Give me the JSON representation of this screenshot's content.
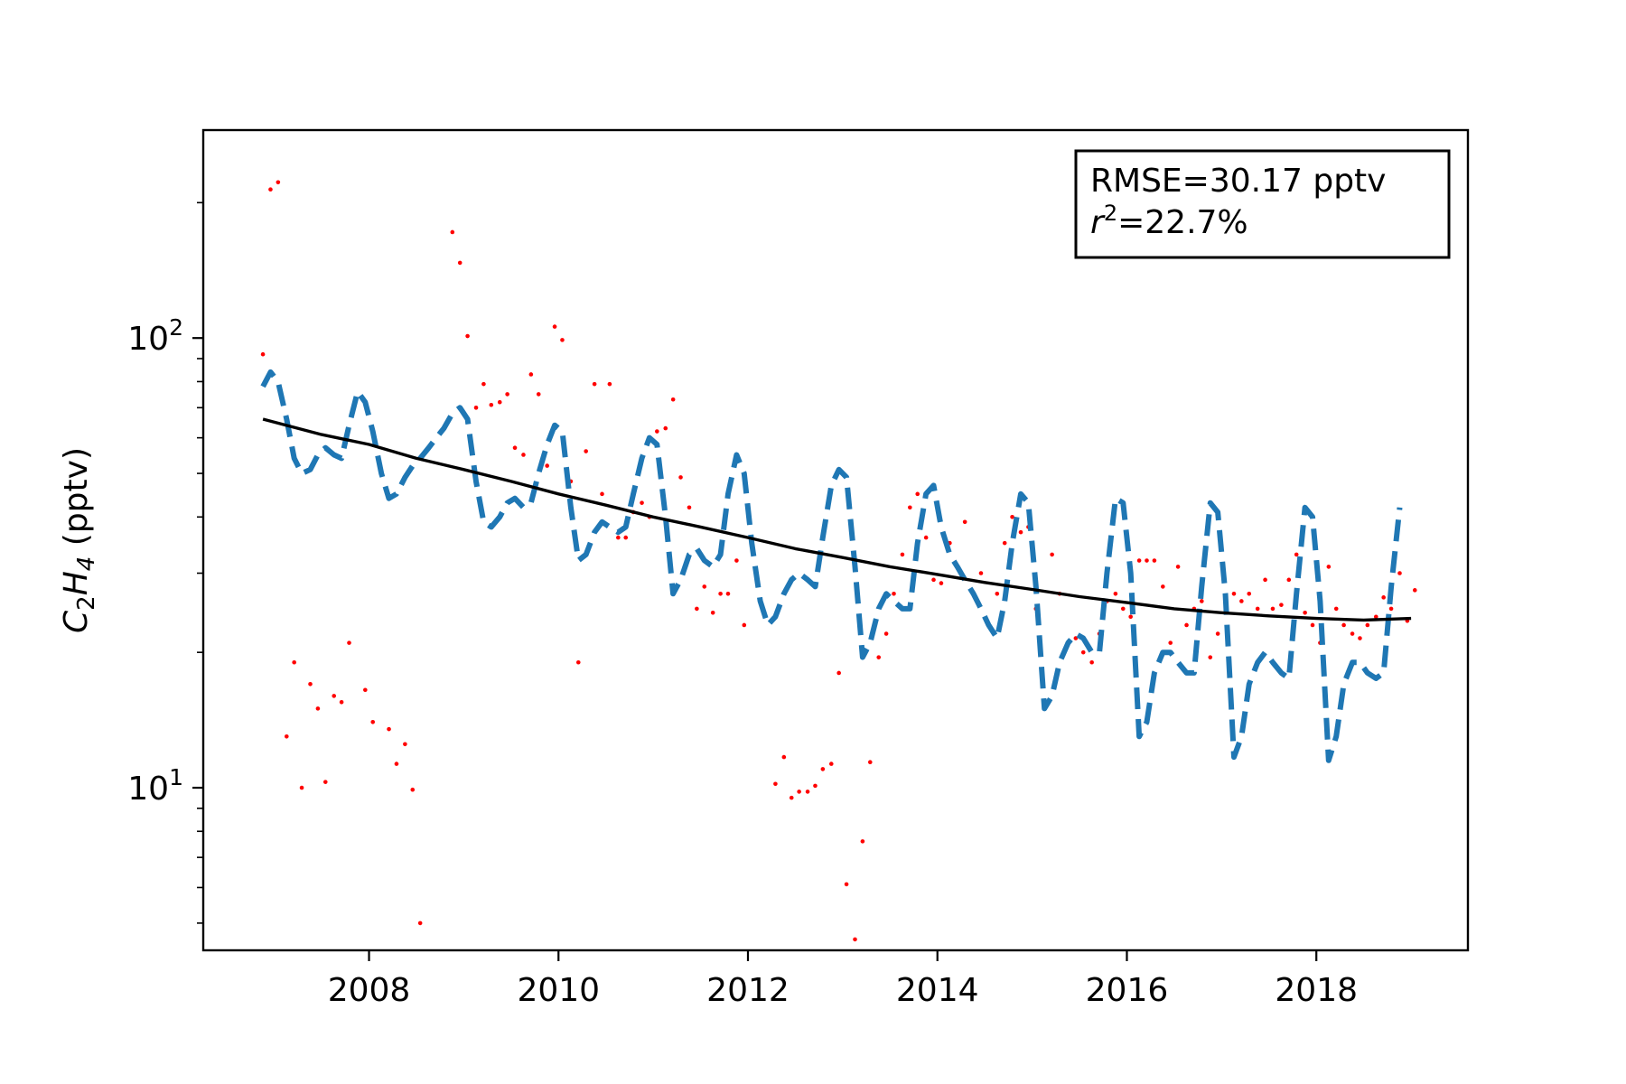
{
  "chart_data": {
    "type": "scatter",
    "title": "",
    "xlabel": "",
    "ylabel": {
      "species_main_1": "C",
      "species_sub_1": "2",
      "species_main_2": "H",
      "species_sub_2": "4",
      "unit": " (pptv)"
    },
    "annotation": {
      "line1": "RMSE=30.17 pptv",
      "line2_var": "r",
      "line2_sup": "2",
      "line2_rest": "=22.7%"
    },
    "x_ticks": [
      2008,
      2010,
      2012,
      2014,
      2016,
      2018
    ],
    "y_ticks": [
      {
        "value": 10,
        "base": "10",
        "exp": "1"
      },
      {
        "value": 100,
        "base": "10",
        "exp": "2"
      }
    ],
    "xlim": [
      2006.25,
      2019.6
    ],
    "ylim": [
      4.35,
      290
    ],
    "y_scale": "log",
    "grid": false,
    "colors": {
      "observed": "#ff0000",
      "seasonal_fit": "#1f77b4",
      "trend": "#000000"
    },
    "series": [
      {
        "style": "red-dots",
        "points": [
          [
            2006.88,
            92
          ],
          [
            2006.96,
            214
          ],
          [
            2007.04,
            222
          ],
          [
            2007.13,
            13
          ],
          [
            2007.21,
            19
          ],
          [
            2007.29,
            10
          ],
          [
            2007.38,
            17
          ],
          [
            2007.46,
            15
          ],
          [
            2007.54,
            10.3
          ],
          [
            2007.63,
            16
          ],
          [
            2007.71,
            15.5
          ],
          [
            2007.79,
            21
          ],
          [
            2007.96,
            16.5
          ],
          [
            2008.04,
            14
          ],
          [
            2008.21,
            13.5
          ],
          [
            2008.29,
            11.3
          ],
          [
            2008.38,
            12.5
          ],
          [
            2008.46,
            9.9
          ],
          [
            2008.54,
            5.0
          ],
          [
            2008.88,
            172
          ],
          [
            2008.96,
            147
          ],
          [
            2009.04,
            101
          ],
          [
            2009.13,
            70
          ],
          [
            2009.21,
            79
          ],
          [
            2009.29,
            71
          ],
          [
            2009.38,
            72
          ],
          [
            2009.46,
            75
          ],
          [
            2009.54,
            57
          ],
          [
            2009.63,
            55
          ],
          [
            2009.71,
            83
          ],
          [
            2009.79,
            75
          ],
          [
            2009.88,
            52
          ],
          [
            2009.96,
            106
          ],
          [
            2010.04,
            99
          ],
          [
            2010.13,
            48
          ],
          [
            2010.21,
            19
          ],
          [
            2010.29,
            56
          ],
          [
            2010.38,
            79
          ],
          [
            2010.46,
            45
          ],
          [
            2010.54,
            79
          ],
          [
            2010.63,
            36
          ],
          [
            2010.71,
            36
          ],
          [
            2010.79,
            41
          ],
          [
            2010.88,
            43
          ],
          [
            2010.96,
            40
          ],
          [
            2011.04,
            62
          ],
          [
            2011.13,
            63
          ],
          [
            2011.21,
            73
          ],
          [
            2011.29,
            49
          ],
          [
            2011.38,
            42
          ],
          [
            2011.46,
            25
          ],
          [
            2011.54,
            28
          ],
          [
            2011.63,
            24.5
          ],
          [
            2011.71,
            27
          ],
          [
            2011.79,
            27
          ],
          [
            2011.88,
            32
          ],
          [
            2011.96,
            23
          ],
          [
            2012.29,
            10.2
          ],
          [
            2012.38,
            11.7
          ],
          [
            2012.46,
            9.5
          ],
          [
            2012.54,
            9.8
          ],
          [
            2012.63,
            9.8
          ],
          [
            2012.71,
            10.1
          ],
          [
            2012.79,
            11
          ],
          [
            2012.88,
            11.3
          ],
          [
            2012.96,
            18
          ],
          [
            2013.04,
            6.1
          ],
          [
            2013.13,
            4.6
          ],
          [
            2013.21,
            7.6
          ],
          [
            2013.29,
            11.4
          ],
          [
            2013.38,
            19.5
          ],
          [
            2013.46,
            22
          ],
          [
            2013.54,
            27
          ],
          [
            2013.63,
            33
          ],
          [
            2013.71,
            42
          ],
          [
            2013.79,
            45
          ],
          [
            2013.88,
            36
          ],
          [
            2013.96,
            29
          ],
          [
            2014.04,
            28.5
          ],
          [
            2014.13,
            35
          ],
          [
            2014.29,
            39
          ],
          [
            2014.46,
            30
          ],
          [
            2014.63,
            27
          ],
          [
            2014.71,
            35
          ],
          [
            2014.79,
            40
          ],
          [
            2014.88,
            37
          ],
          [
            2014.96,
            38
          ],
          [
            2015.04,
            25
          ],
          [
            2015.21,
            33
          ],
          [
            2015.29,
            27
          ],
          [
            2015.46,
            21.5
          ],
          [
            2015.54,
            20
          ],
          [
            2015.63,
            19
          ],
          [
            2015.71,
            22
          ],
          [
            2015.79,
            26
          ],
          [
            2015.88,
            27
          ],
          [
            2015.96,
            25
          ],
          [
            2016.04,
            24
          ],
          [
            2016.13,
            32
          ],
          [
            2016.21,
            32
          ],
          [
            2016.29,
            32
          ],
          [
            2016.38,
            28
          ],
          [
            2016.46,
            21
          ],
          [
            2016.54,
            31
          ],
          [
            2016.63,
            23
          ],
          [
            2016.71,
            25
          ],
          [
            2016.79,
            26
          ],
          [
            2016.88,
            19.5
          ],
          [
            2016.96,
            22
          ],
          [
            2017.04,
            26
          ],
          [
            2017.13,
            27
          ],
          [
            2017.21,
            26
          ],
          [
            2017.29,
            27
          ],
          [
            2017.38,
            25
          ],
          [
            2017.46,
            29
          ],
          [
            2017.54,
            25
          ],
          [
            2017.63,
            25.5
          ],
          [
            2017.71,
            29
          ],
          [
            2017.79,
            33
          ],
          [
            2017.88,
            24.5
          ],
          [
            2017.96,
            23
          ],
          [
            2018.04,
            21
          ],
          [
            2018.13,
            31
          ],
          [
            2018.21,
            25
          ],
          [
            2018.29,
            23
          ],
          [
            2018.38,
            22
          ],
          [
            2018.46,
            21.5
          ],
          [
            2018.54,
            23
          ],
          [
            2018.63,
            24
          ],
          [
            2018.71,
            26.5
          ],
          [
            2018.79,
            25
          ],
          [
            2018.88,
            30
          ],
          [
            2018.96,
            23.5
          ],
          [
            2019.04,
            27.5
          ]
        ]
      },
      {
        "style": "blue-dashed",
        "points": [
          [
            2006.88,
            78
          ],
          [
            2006.96,
            84
          ],
          [
            2007.04,
            80
          ],
          [
            2007.13,
            66
          ],
          [
            2007.21,
            54
          ],
          [
            2007.29,
            50
          ],
          [
            2007.38,
            51
          ],
          [
            2007.46,
            55
          ],
          [
            2007.54,
            57
          ],
          [
            2007.63,
            55
          ],
          [
            2007.71,
            54
          ],
          [
            2007.79,
            64
          ],
          [
            2007.88,
            76
          ],
          [
            2007.96,
            72
          ],
          [
            2008.04,
            62
          ],
          [
            2008.13,
            50
          ],
          [
            2008.21,
            44
          ],
          [
            2008.29,
            45
          ],
          [
            2008.38,
            49
          ],
          [
            2008.46,
            52
          ],
          [
            2008.54,
            54
          ],
          [
            2008.63,
            57
          ],
          [
            2008.71,
            60
          ],
          [
            2008.79,
            63
          ],
          [
            2008.88,
            68
          ],
          [
            2008.96,
            70
          ],
          [
            2009.04,
            66
          ],
          [
            2009.13,
            48
          ],
          [
            2009.21,
            39
          ],
          [
            2009.29,
            38
          ],
          [
            2009.38,
            40
          ],
          [
            2009.46,
            43
          ],
          [
            2009.54,
            44
          ],
          [
            2009.63,
            42
          ],
          [
            2009.71,
            43
          ],
          [
            2009.79,
            50
          ],
          [
            2009.88,
            58
          ],
          [
            2009.96,
            64
          ],
          [
            2010.04,
            62
          ],
          [
            2010.13,
            42
          ],
          [
            2010.21,
            32
          ],
          [
            2010.29,
            33
          ],
          [
            2010.38,
            37
          ],
          [
            2010.46,
            39
          ],
          [
            2010.54,
            38
          ],
          [
            2010.63,
            37
          ],
          [
            2010.71,
            38
          ],
          [
            2010.79,
            45
          ],
          [
            2010.88,
            54
          ],
          [
            2010.96,
            60
          ],
          [
            2011.04,
            58
          ],
          [
            2011.13,
            40
          ],
          [
            2011.21,
            27
          ],
          [
            2011.29,
            29
          ],
          [
            2011.38,
            33
          ],
          [
            2011.46,
            34
          ],
          [
            2011.54,
            32
          ],
          [
            2011.63,
            31
          ],
          [
            2011.71,
            33
          ],
          [
            2011.79,
            45
          ],
          [
            2011.88,
            55
          ],
          [
            2011.96,
            50
          ],
          [
            2012.04,
            35
          ],
          [
            2012.13,
            26
          ],
          [
            2012.21,
            23
          ],
          [
            2012.29,
            24
          ],
          [
            2012.38,
            27
          ],
          [
            2012.46,
            29
          ],
          [
            2012.54,
            30
          ],
          [
            2012.63,
            29
          ],
          [
            2012.71,
            28
          ],
          [
            2012.79,
            36
          ],
          [
            2012.88,
            47
          ],
          [
            2012.96,
            51
          ],
          [
            2013.04,
            49
          ],
          [
            2013.13,
            31
          ],
          [
            2013.21,
            19.5
          ],
          [
            2013.29,
            21
          ],
          [
            2013.38,
            25
          ],
          [
            2013.46,
            27
          ],
          [
            2013.54,
            26
          ],
          [
            2013.63,
            25
          ],
          [
            2013.71,
            25
          ],
          [
            2013.79,
            35
          ],
          [
            2013.88,
            45
          ],
          [
            2013.96,
            47
          ],
          [
            2014.04,
            38
          ],
          [
            2014.13,
            33
          ],
          [
            2014.21,
            31
          ],
          [
            2014.29,
            29
          ],
          [
            2014.38,
            27
          ],
          [
            2014.46,
            25
          ],
          [
            2014.54,
            23
          ],
          [
            2014.63,
            21.5
          ],
          [
            2014.71,
            26
          ],
          [
            2014.79,
            35
          ],
          [
            2014.88,
            45
          ],
          [
            2014.96,
            43
          ],
          [
            2015.04,
            28
          ],
          [
            2015.13,
            15
          ],
          [
            2015.21,
            16
          ],
          [
            2015.29,
            19
          ],
          [
            2015.38,
            21
          ],
          [
            2015.46,
            22
          ],
          [
            2015.54,
            21.5
          ],
          [
            2015.63,
            20
          ],
          [
            2015.71,
            20
          ],
          [
            2015.79,
            30
          ],
          [
            2015.88,
            44
          ],
          [
            2015.96,
            43
          ],
          [
            2016.04,
            30
          ],
          [
            2016.13,
            13
          ],
          [
            2016.21,
            14
          ],
          [
            2016.29,
            18
          ],
          [
            2016.38,
            20
          ],
          [
            2016.46,
            20
          ],
          [
            2016.54,
            19
          ],
          [
            2016.63,
            18
          ],
          [
            2016.71,
            18
          ],
          [
            2016.79,
            28
          ],
          [
            2016.88,
            43
          ],
          [
            2016.96,
            41
          ],
          [
            2017.04,
            27
          ],
          [
            2017.13,
            11.7
          ],
          [
            2017.21,
            13
          ],
          [
            2017.29,
            17
          ],
          [
            2017.38,
            19
          ],
          [
            2017.46,
            20
          ],
          [
            2017.54,
            19
          ],
          [
            2017.63,
            18
          ],
          [
            2017.71,
            17.5
          ],
          [
            2017.79,
            27
          ],
          [
            2017.88,
            42
          ],
          [
            2017.96,
            40
          ],
          [
            2018.04,
            26
          ],
          [
            2018.13,
            11.5
          ],
          [
            2018.21,
            13
          ],
          [
            2018.29,
            17
          ],
          [
            2018.38,
            19
          ],
          [
            2018.46,
            19
          ],
          [
            2018.54,
            18
          ],
          [
            2018.63,
            17.5
          ],
          [
            2018.71,
            18
          ],
          [
            2018.79,
            28
          ],
          [
            2018.88,
            42
          ]
        ]
      },
      {
        "style": "black-solid",
        "points": [
          [
            2006.88,
            66
          ],
          [
            2007.5,
            61
          ],
          [
            2008.0,
            58
          ],
          [
            2008.5,
            54
          ],
          [
            2009.0,
            51
          ],
          [
            2009.5,
            48
          ],
          [
            2010.0,
            45
          ],
          [
            2010.5,
            42.5
          ],
          [
            2011.0,
            40
          ],
          [
            2011.5,
            38
          ],
          [
            2012.0,
            36
          ],
          [
            2012.5,
            34
          ],
          [
            2013.0,
            32.5
          ],
          [
            2013.5,
            31
          ],
          [
            2014.0,
            29.8
          ],
          [
            2014.5,
            28.6
          ],
          [
            2015.0,
            27.6
          ],
          [
            2015.5,
            26.6
          ],
          [
            2016.0,
            25.8
          ],
          [
            2016.5,
            25
          ],
          [
            2017.0,
            24.5
          ],
          [
            2017.5,
            24.1
          ],
          [
            2018.0,
            23.8
          ],
          [
            2018.5,
            23.6
          ],
          [
            2019.0,
            23.8
          ]
        ]
      }
    ]
  }
}
